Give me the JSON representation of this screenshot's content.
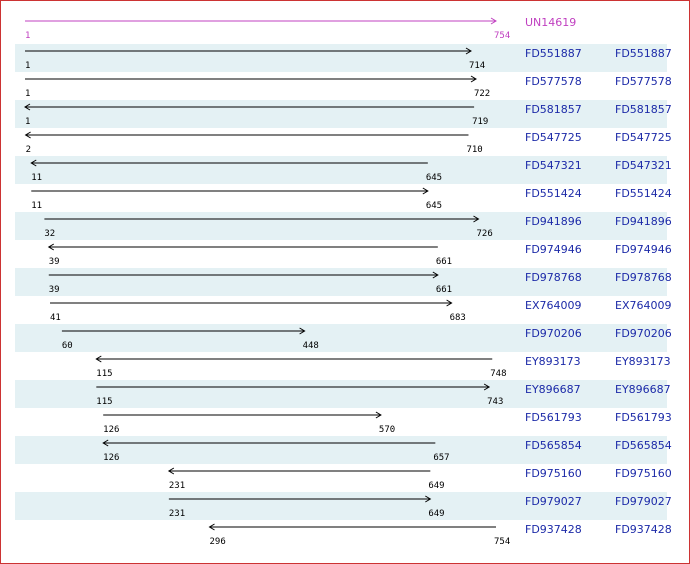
{
  "reference": {
    "name": "UN14619",
    "start": 1,
    "end": 754
  },
  "rows": [
    {
      "name": "FD551887",
      "link": "FD551887",
      "start": 1,
      "end": 714,
      "direction": "right"
    },
    {
      "name": "FD577578",
      "link": "FD577578",
      "start": 1,
      "end": 722,
      "direction": "right"
    },
    {
      "name": "FD581857",
      "link": "FD581857",
      "start": 1,
      "end": 719,
      "direction": "left"
    },
    {
      "name": "FD547725",
      "link": "FD547725",
      "start": 2,
      "end": 710,
      "direction": "left"
    },
    {
      "name": "FD547321",
      "link": "FD547321",
      "start": 11,
      "end": 645,
      "direction": "left"
    },
    {
      "name": "FD551424",
      "link": "FD551424",
      "start": 11,
      "end": 645,
      "direction": "right"
    },
    {
      "name": "FD941896",
      "link": "FD941896",
      "start": 32,
      "end": 726,
      "direction": "right"
    },
    {
      "name": "FD974946",
      "link": "FD974946",
      "start": 39,
      "end": 661,
      "direction": "left"
    },
    {
      "name": "FD978768",
      "link": "FD978768",
      "start": 39,
      "end": 661,
      "direction": "right"
    },
    {
      "name": "EX764009",
      "link": "EX764009",
      "start": 41,
      "end": 683,
      "direction": "right"
    },
    {
      "name": "FD970206",
      "link": "FD970206",
      "start": 60,
      "end": 448,
      "direction": "right"
    },
    {
      "name": "EY893173",
      "link": "EY893173",
      "start": 115,
      "end": 748,
      "direction": "left"
    },
    {
      "name": "EY896687",
      "link": "EY896687",
      "start": 115,
      "end": 743,
      "direction": "right"
    },
    {
      "name": "FD561793",
      "link": "FD561793",
      "start": 126,
      "end": 570,
      "direction": "right"
    },
    {
      "name": "FD565854",
      "link": "FD565854",
      "start": 126,
      "end": 657,
      "direction": "left"
    },
    {
      "name": "FD975160",
      "link": "FD975160",
      "start": 231,
      "end": 649,
      "direction": "left"
    },
    {
      "name": "FD979027",
      "link": "FD979027",
      "start": 231,
      "end": 649,
      "direction": "right"
    },
    {
      "name": "FD937428",
      "link": "FD937428",
      "start": 296,
      "end": 754,
      "direction": "left"
    }
  ]
}
